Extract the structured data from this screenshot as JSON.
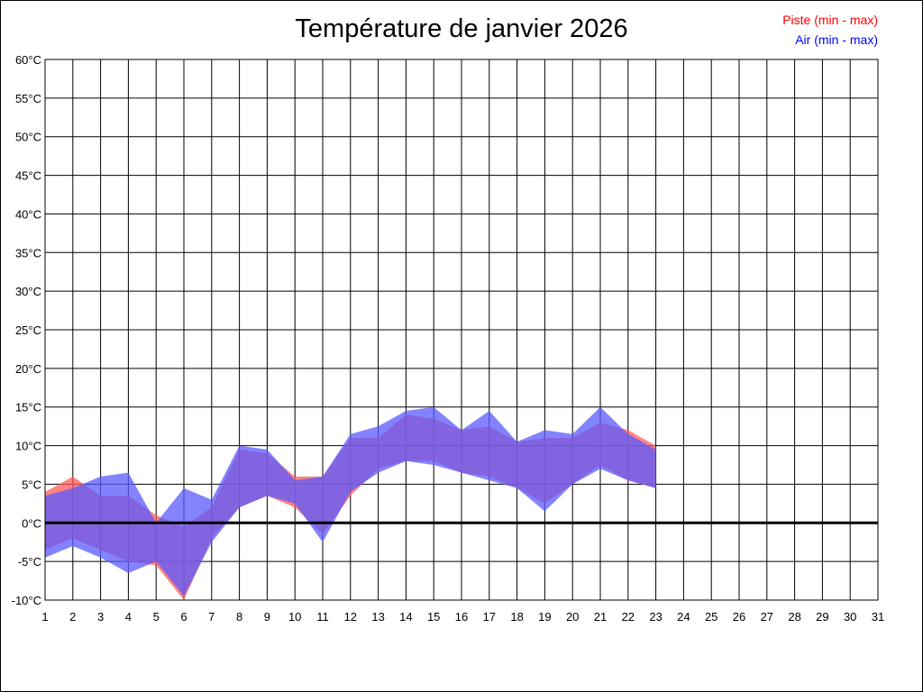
{
  "chart_data": {
    "type": "area",
    "title": "Température de janvier 2026",
    "xlabel": "",
    "ylabel": "",
    "x": [
      1,
      2,
      3,
      4,
      5,
      6,
      7,
      8,
      9,
      10,
      11,
      12,
      13,
      14,
      15,
      16,
      17,
      18,
      19,
      20,
      21,
      22,
      23
    ],
    "x_ticks": [
      1,
      2,
      3,
      4,
      5,
      6,
      7,
      8,
      9,
      10,
      11,
      12,
      13,
      14,
      15,
      16,
      17,
      18,
      19,
      20,
      21,
      22,
      23,
      24,
      25,
      26,
      27,
      28,
      29,
      30,
      31
    ],
    "xlim": [
      1,
      31
    ],
    "ylim": [
      -10,
      60
    ],
    "y_ticks": [
      -10,
      -5,
      0,
      5,
      10,
      15,
      20,
      25,
      30,
      35,
      40,
      45,
      50,
      55,
      60
    ],
    "y_unit": "°C",
    "grid": true,
    "legend_position": "top-right",
    "series": [
      {
        "name": "Piste (min - max)",
        "color": "#ff0000",
        "fill": "#ff5a5a",
        "min": [
          -3.5,
          -2,
          -3.5,
          -5,
          -5.5,
          -10,
          -2,
          2,
          3.5,
          2,
          -1.5,
          3.5,
          7,
          8,
          8,
          6.5,
          6,
          4.5,
          2.5,
          5,
          7.5,
          5.5,
          4.5
        ],
        "max": [
          4,
          6,
          3.5,
          3.5,
          1,
          -0.5,
          2,
          9.5,
          9,
          6,
          6,
          11,
          11,
          14,
          13.5,
          12,
          12.5,
          10.5,
          11,
          11,
          13,
          12,
          10
        ]
      },
      {
        "name": "Air (min - max)",
        "color": "#0000ff",
        "fill": "#5a5aff",
        "min": [
          -4.5,
          -3,
          -4.5,
          -6.5,
          -5,
          -9.5,
          -2.5,
          2,
          3.5,
          2.5,
          -2.5,
          4,
          6.5,
          8,
          7.5,
          6.5,
          5.5,
          4.5,
          1.5,
          5,
          7,
          5.5,
          4.5
        ],
        "max": [
          3.5,
          4.5,
          6,
          6.5,
          0,
          4.5,
          3,
          10,
          9.5,
          5.5,
          6,
          11.5,
          12.5,
          14.5,
          15,
          12,
          14.5,
          10.5,
          12,
          11.5,
          15,
          11.5,
          9.5
        ]
      }
    ]
  }
}
